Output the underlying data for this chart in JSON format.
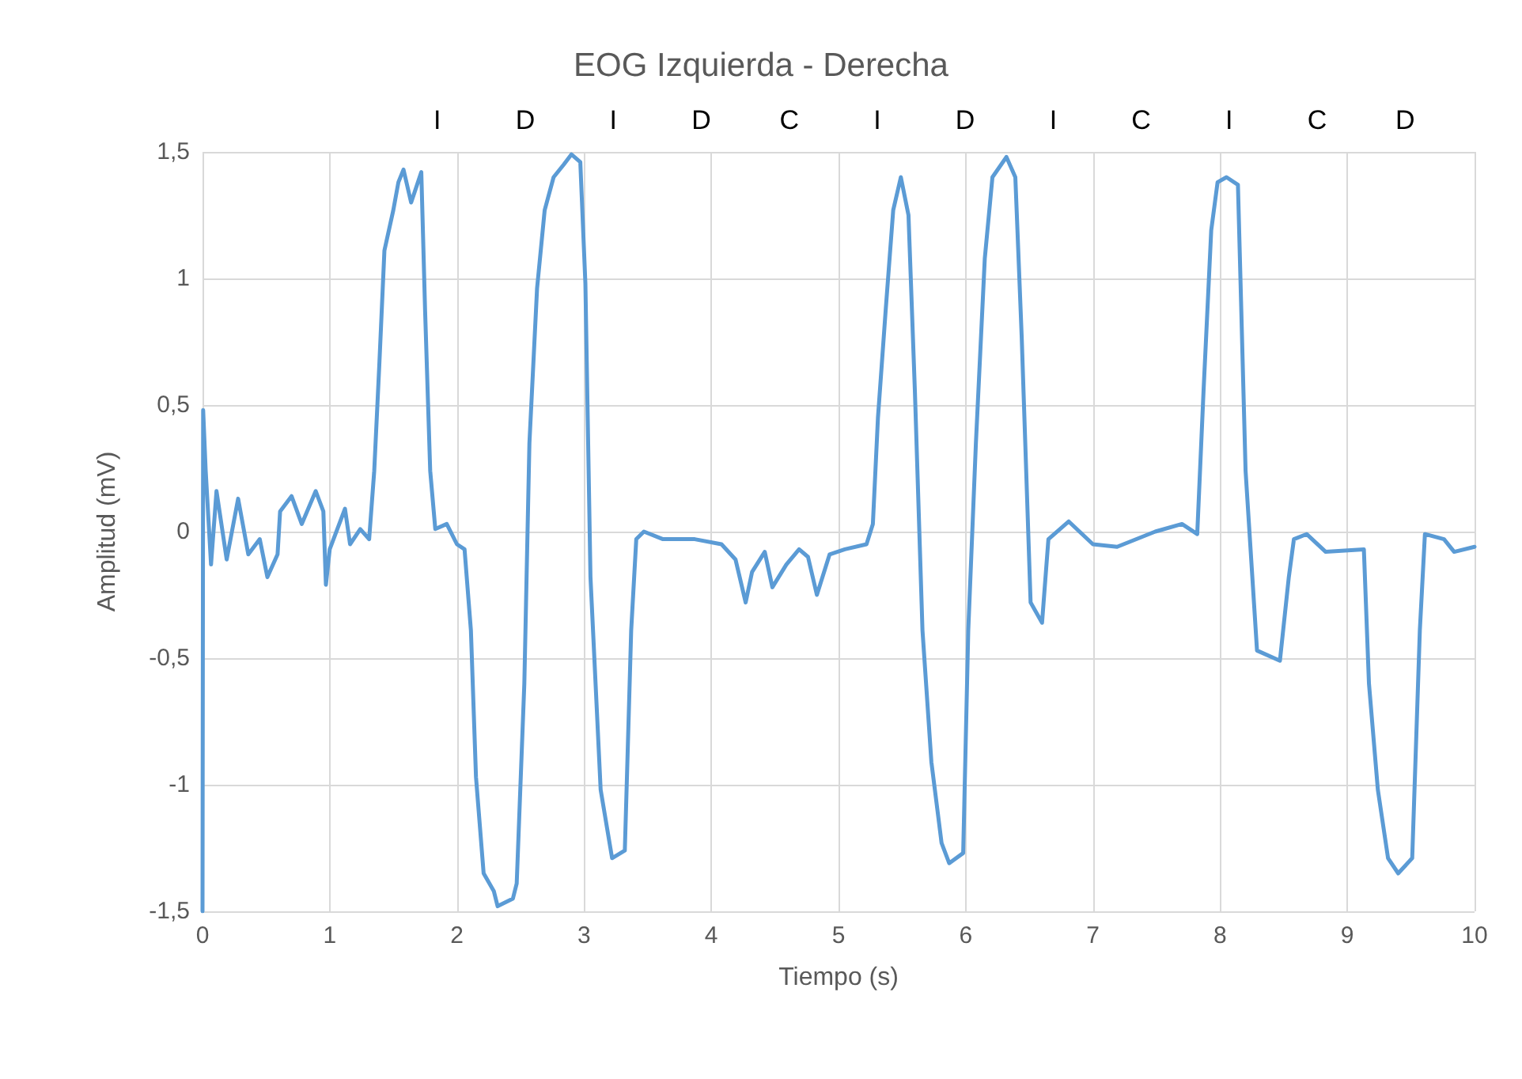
{
  "chart_data": {
    "type": "line",
    "title": "EOG Izquierda - Derecha",
    "xlabel": "Tiempo (s)",
    "ylabel": "Amplitud (mV)",
    "xlim": [
      0,
      10
    ],
    "xticks": [
      0,
      1,
      2,
      3,
      4,
      5,
      6,
      7,
      8,
      9,
      10
    ],
    "ylim": [
      -1.5,
      1.5
    ],
    "yticks": [
      {
        "value": -1.5,
        "label": "-1,5"
      },
      -1,
      {
        "value": -0.5,
        "label": "-0,5"
      },
      0,
      {
        "value": 0.5,
        "label": "0,5"
      },
      1,
      {
        "value": 1.5,
        "label": "1,5"
      }
    ],
    "grid": true,
    "marker": "none",
    "line_style": "solid",
    "annotations": [
      "I",
      "D",
      "I",
      "D",
      "C",
      "I",
      "D",
      "I",
      "C",
      "I",
      "C",
      "D"
    ],
    "series": [
      {
        "color": "#5b9bd5",
        "x": [
          0,
          0.005,
          0.025,
          0.067,
          0.11,
          0.19,
          0.28,
          0.36,
          0.45,
          0.51,
          0.59,
          0.61,
          0.7,
          0.78,
          0.89,
          0.95,
          0.97,
          1.0,
          1.12,
          1.16,
          1.24,
          1.31,
          1.35,
          1.39,
          1.43,
          1.5,
          1.54,
          1.58,
          1.64,
          1.72,
          1.75,
          1.79,
          1.83,
          1.92,
          2.0,
          2.06,
          2.11,
          2.15,
          2.21,
          2.29,
          2.32,
          2.44,
          2.47,
          2.53,
          2.57,
          2.63,
          2.69,
          2.76,
          2.84,
          2.9,
          2.97,
          3.01,
          3.05,
          3.13,
          3.22,
          3.32,
          3.37,
          3.41,
          3.47,
          3.62,
          3.87,
          4.08,
          4.19,
          4.27,
          4.32,
          4.42,
          4.48,
          4.59,
          4.69,
          4.76,
          4.83,
          4.93,
          5.05,
          5.22,
          5.27,
          5.31,
          5.37,
          5.43,
          5.49,
          5.55,
          5.6,
          5.66,
          5.73,
          5.81,
          5.87,
          5.98,
          6.02,
          6.08,
          6.15,
          6.21,
          6.32,
          6.39,
          6.44,
          6.51,
          6.6,
          6.65,
          6.81,
          7.0,
          7.19,
          7.49,
          7.7,
          7.82,
          7.87,
          7.93,
          7.98,
          8.05,
          8.14,
          8.2,
          8.29,
          8.47,
          8.54,
          8.58,
          8.68,
          8.83,
          9.13,
          9.17,
          9.24,
          9.32,
          9.4,
          9.51,
          9.57,
          9.61,
          9.76,
          9.84,
          10.0
        ],
        "values": [
          -1.5,
          0.48,
          0.24,
          -0.13,
          0.16,
          -0.11,
          0.13,
          -0.09,
          -0.03,
          -0.18,
          -0.09,
          0.08,
          0.14,
          0.03,
          0.16,
          0.08,
          -0.21,
          -0.07,
          0.09,
          -0.05,
          0.01,
          -0.03,
          0.24,
          0.66,
          1.11,
          1.27,
          1.38,
          1.43,
          1.3,
          1.42,
          0.87,
          0.24,
          0.01,
          0.03,
          -0.05,
          -0.07,
          -0.39,
          -0.97,
          -1.35,
          -1.42,
          -1.48,
          -1.45,
          -1.39,
          -0.6,
          0.35,
          0.96,
          1.27,
          1.4,
          1.45,
          1.49,
          1.46,
          0.98,
          -0.18,
          -1.02,
          -1.29,
          -1.26,
          -0.39,
          -0.03,
          0.0,
          -0.03,
          -0.03,
          -0.05,
          -0.11,
          -0.28,
          -0.16,
          -0.08,
          -0.22,
          -0.13,
          -0.07,
          -0.1,
          -0.25,
          -0.09,
          -0.07,
          -0.05,
          0.03,
          0.45,
          0.87,
          1.27,
          1.4,
          1.25,
          0.56,
          -0.39,
          -0.91,
          -1.23,
          -1.31,
          -1.27,
          -0.39,
          0.35,
          1.08,
          1.4,
          1.48,
          1.4,
          0.77,
          -0.28,
          -0.36,
          -0.03,
          0.04,
          -0.05,
          -0.06,
          0.0,
          0.03,
          -0.01,
          0.56,
          1.19,
          1.38,
          1.4,
          1.37,
          0.24,
          -0.47,
          -0.51,
          -0.18,
          -0.03,
          -0.01,
          -0.08,
          -0.07,
          -0.6,
          -1.02,
          -1.29,
          -1.35,
          -1.29,
          -0.39,
          -0.01,
          -0.03,
          -0.08,
          -0.06
        ]
      }
    ]
  }
}
